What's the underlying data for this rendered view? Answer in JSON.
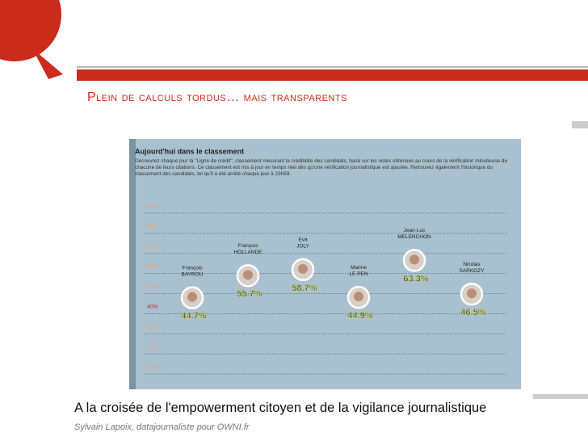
{
  "title": "Plein de calculs tordus… mais transparents",
  "chart_data": {
    "type": "scatter",
    "title": "Aujourd'hui dans le classement",
    "subtitle": "Découvrez chaque jour la \"Ligne de crédit\", classement mesurant la crédibilité des candidats, basé sur les notes obtenues au cours de la vérification minutieuse de chacune de leurs citations. Ce classement est mis à jour en temps réel dès qu'une vérification journalistique est ajoutée. Retrouvez également l'historique du classement des candidats, tel qu'il a été arrêté chaque jour à 23h59.",
    "first_names": [
      "François",
      "François",
      "Eva",
      "Marine",
      "Jean-Luc",
      "Nicolas"
    ],
    "last_names": [
      "BAYROU",
      "HOLLANDE",
      "JOLY",
      "LE PEN",
      "MELENCHON",
      "SARKOZY"
    ],
    "values": [
      44.7,
      55.7,
      58.7,
      44.9,
      63.3,
      46.5
    ],
    "value_labels": [
      "44.7%",
      "55.7%",
      "58.7%",
      "44.9%",
      "63.3%",
      "46.5%"
    ],
    "ylim": [
      10,
      90
    ],
    "yticks": [
      {
        "value": 10,
        "label": "10%"
      },
      {
        "value": 20,
        "label": "20%"
      },
      {
        "value": 30,
        "label": "30%"
      },
      {
        "value": 40,
        "label": "40%"
      },
      {
        "value": 50,
        "label": "50%"
      },
      {
        "value": 60,
        "label": "60%"
      },
      {
        "value": 70,
        "label": "70%"
      },
      {
        "value": 80,
        "label": "80%"
      },
      {
        "value": 90,
        "label": "90%"
      }
    ],
    "grid": true
  },
  "caption": "A la croisée de l'empowerment citoyen et de la vigilance journalistique",
  "credit": "Sylvain Lapoix, datajournaliste pour OWNI.fr"
}
